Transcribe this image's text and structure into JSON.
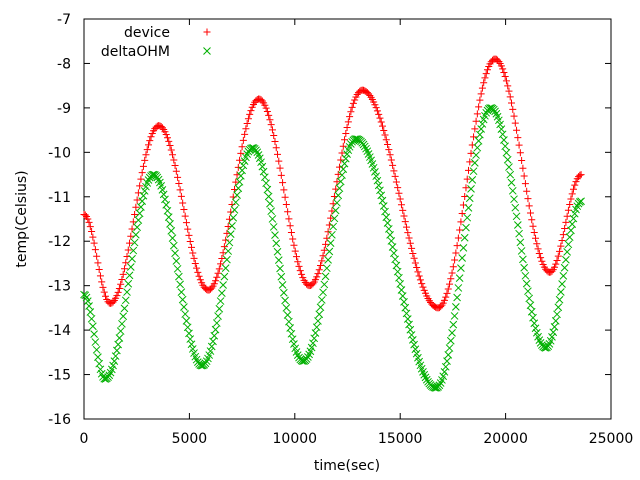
{
  "chart_data": {
    "type": "scatter",
    "xlabel": "time(sec)",
    "ylabel": "temp(Celsius)",
    "xlim": [
      0,
      25000
    ],
    "ylim": [
      -16,
      -7
    ],
    "x_ticks": [
      0,
      5000,
      10000,
      15000,
      20000,
      25000
    ],
    "y_ticks": [
      -16,
      -15,
      -14,
      -13,
      -12,
      -11,
      -10,
      -9,
      -8,
      -7
    ],
    "x_tick_labels": [
      "0",
      "5000",
      "10000",
      "15000",
      "20000",
      "25000"
    ],
    "y_tick_labels": [
      "-16",
      "-15",
      "-14",
      "-13",
      "-12",
      "-11",
      "-10",
      "-9",
      "-8",
      "-7"
    ],
    "grid": false,
    "legend_position": "top-left",
    "series": [
      {
        "name": "device",
        "marker": "plus",
        "color": "#ff0000",
        "keyframes": [
          [
            0,
            -11.4
          ],
          [
            1250,
            -13.4
          ],
          [
            3550,
            -9.4
          ],
          [
            5900,
            -13.1
          ],
          [
            8300,
            -8.8
          ],
          [
            10700,
            -13.0
          ],
          [
            13200,
            -8.6
          ],
          [
            16800,
            -13.5
          ],
          [
            19500,
            -7.9
          ],
          [
            22100,
            -12.7
          ],
          [
            23600,
            -10.5
          ]
        ]
      },
      {
        "name": "deltaOHM",
        "marker": "cross",
        "color": "#00b000",
        "keyframes": [
          [
            0,
            -13.2
          ],
          [
            1000,
            -15.1
          ],
          [
            3300,
            -10.5
          ],
          [
            5600,
            -14.8
          ],
          [
            8000,
            -9.9
          ],
          [
            10400,
            -14.7
          ],
          [
            12900,
            -9.7
          ],
          [
            16700,
            -15.3
          ],
          [
            19300,
            -9.0
          ],
          [
            21900,
            -14.4
          ],
          [
            23600,
            -11.1
          ]
        ]
      }
    ]
  }
}
